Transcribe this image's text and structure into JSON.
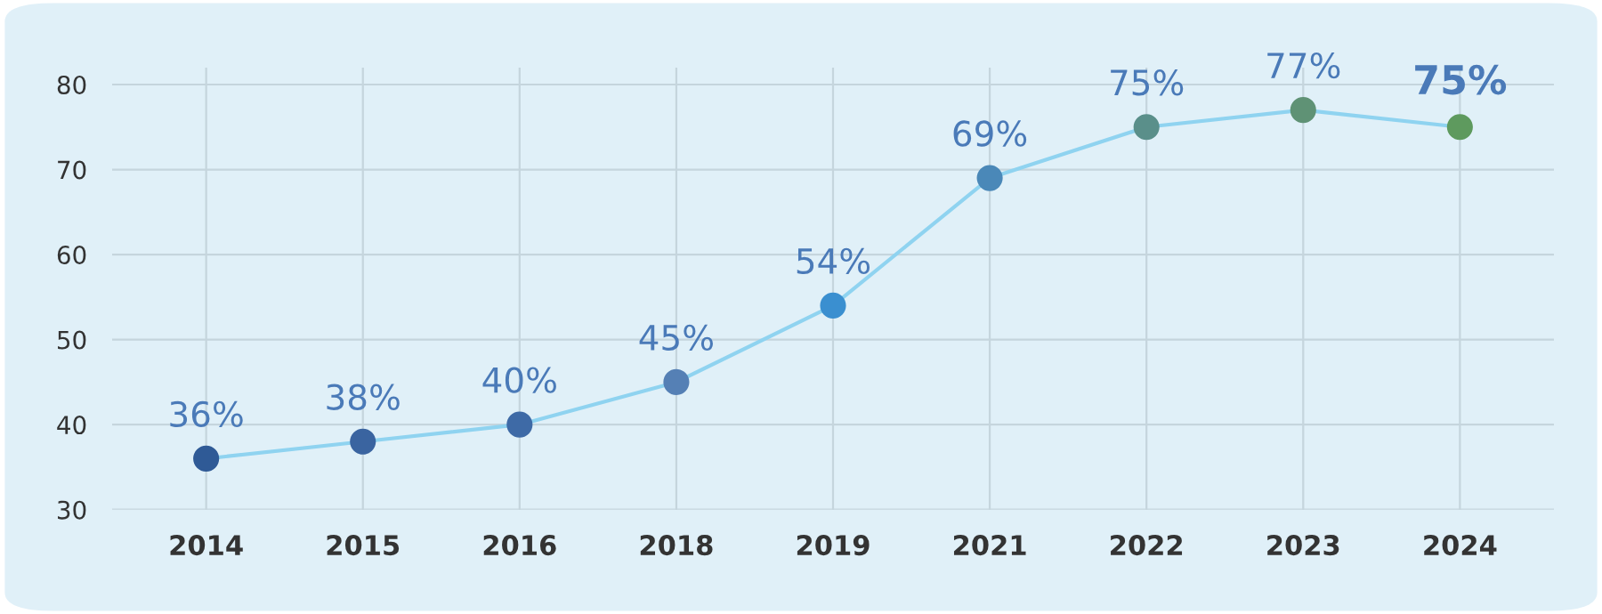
{
  "chart_data": {
    "type": "line",
    "categories": [
      "2014",
      "2015",
      "2016",
      "2018",
      "2019",
      "2021",
      "2022",
      "2023",
      "2024"
    ],
    "series": [
      {
        "color": "#8fd3f0",
        "values": [
          36,
          38,
          40,
          45,
          54,
          69,
          75,
          77,
          75
        ],
        "colors": [
          "#2f5a96",
          "#3a64a0",
          "#3e6aa6",
          "#5580b5",
          "#3a8fd0",
          "#4a88b8",
          "#5a8f8a",
          "#5f9275",
          "#5e9a5e"
        ],
        "value_labels": [
          "36%",
          "38%",
          "40%",
          "45%",
          "54%",
          "69%",
          "75%",
          "77%",
          "75%"
        ]
      }
    ],
    "ylim": [
      30,
      82
    ],
    "yticks": [
      30,
      40,
      50,
      60,
      70,
      80
    ],
    "grid": true,
    "marker": "circle",
    "line_style": "solid"
  }
}
